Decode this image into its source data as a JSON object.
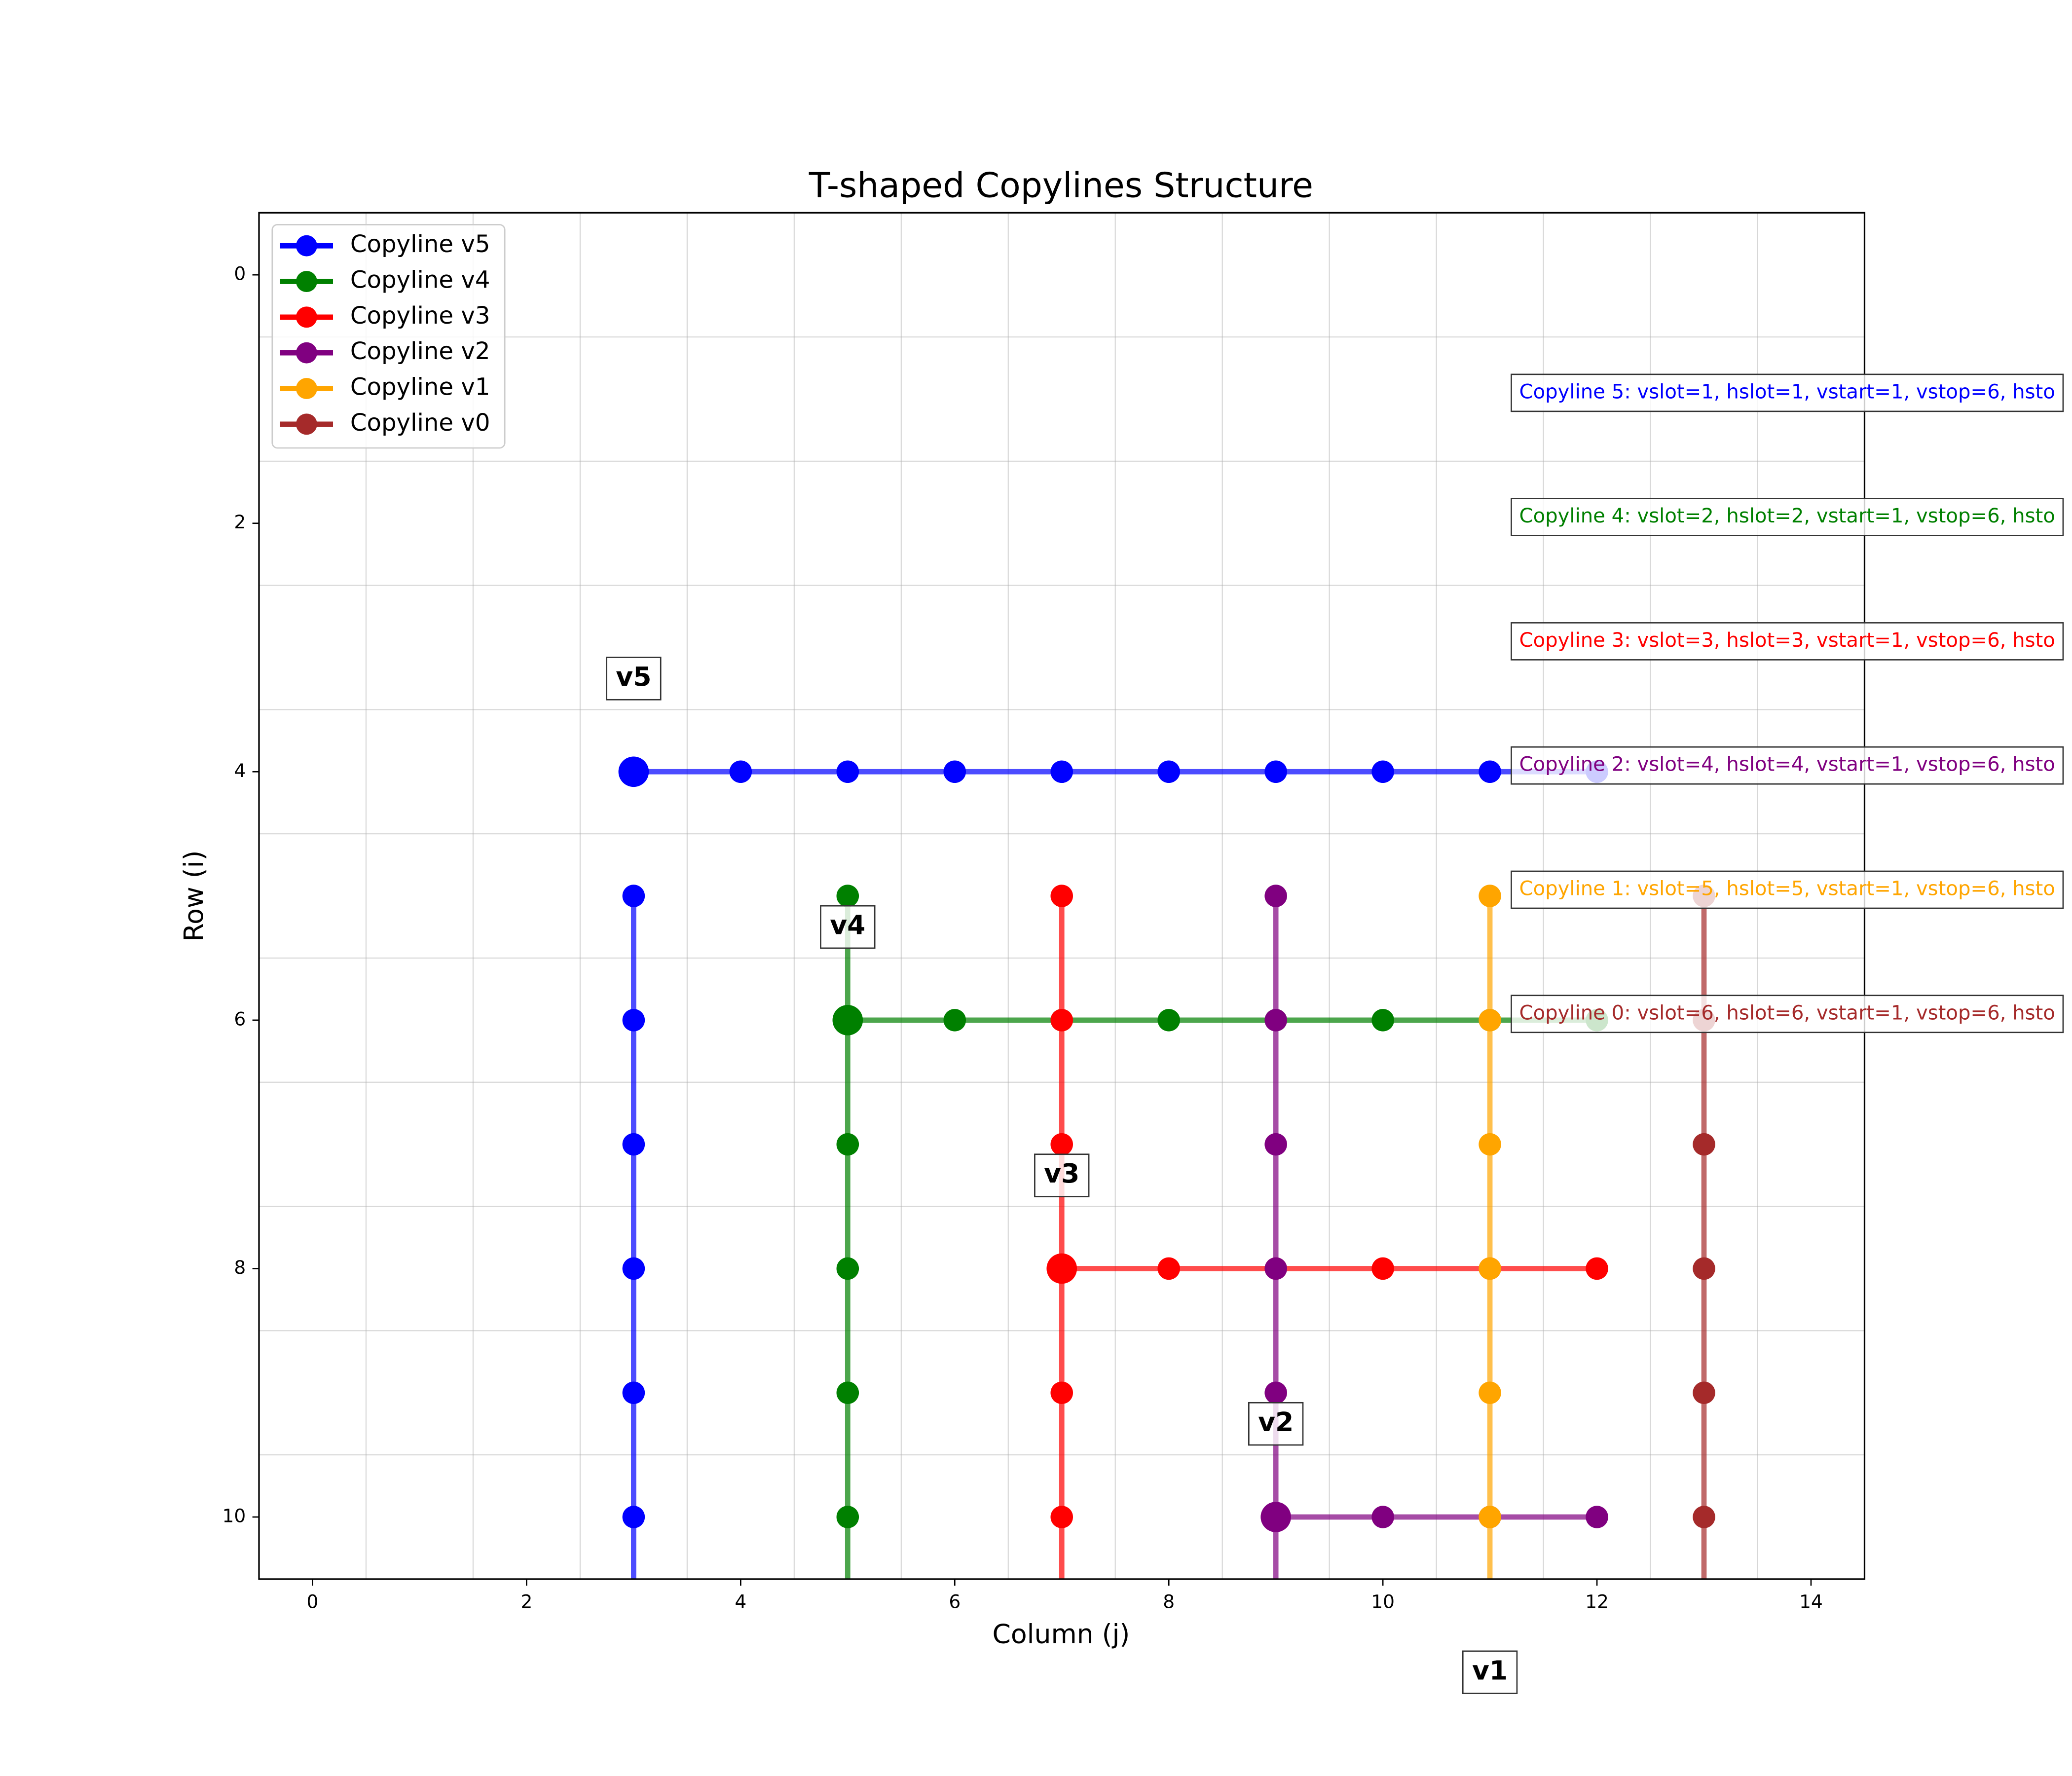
{
  "chart_data": {
    "type": "line",
    "title": "T-shaped Copylines Structure",
    "xlabel": "Column (j)",
    "ylabel": "Row (i)",
    "xlim": [
      -0.5,
      14.5
    ],
    "ylim": [
      10.5,
      -0.5
    ],
    "xticks": [
      0,
      2,
      4,
      6,
      8,
      10,
      12,
      14
    ],
    "yticks": [
      0,
      2,
      4,
      6,
      8,
      10
    ],
    "grid": true,
    "xgrid": [
      0.5,
      1.5,
      2.5,
      3.5,
      4.5,
      5.5,
      6.5,
      7.5,
      8.5,
      9.5,
      10.5,
      11.5,
      12.5,
      13.5
    ],
    "ygrid": [
      0.5,
      1.5,
      2.5,
      3.5,
      4.5,
      5.5,
      6.5,
      7.5,
      8.5,
      9.5
    ],
    "legend": "upper left",
    "series": [
      {
        "name": "Copyline v5",
        "color": "#0000ff",
        "x": [
          3,
          4,
          5,
          6,
          7,
          8,
          9,
          10,
          11,
          12,
          null,
          3,
          3,
          3,
          3,
          3,
          3,
          3
        ],
        "values": [
          4,
          4,
          4,
          4,
          4,
          4,
          4,
          4,
          4,
          4,
          null,
          5,
          6,
          7,
          8,
          9,
          10,
          11
        ],
        "corner": {
          "x": 3,
          "y": 4
        },
        "label": {
          "text": "v5",
          "x": 3,
          "y": 3.25
        }
      },
      {
        "name": "Copyline v4",
        "color": "#008000",
        "x": [
          5,
          6,
          7,
          8,
          9,
          10,
          11,
          12,
          null,
          5,
          5,
          5,
          5,
          5,
          5,
          5
        ],
        "values": [
          6,
          6,
          6,
          6,
          6,
          6,
          6,
          6,
          null,
          5,
          6,
          7,
          8,
          9,
          10,
          11
        ],
        "corner": {
          "x": 5,
          "y": 6
        },
        "label": {
          "text": "v4",
          "x": 5,
          "y": 5.25
        }
      },
      {
        "name": "Copyline v3",
        "color": "#ff0000",
        "x": [
          7,
          8,
          9,
          10,
          11,
          12,
          null,
          7,
          7,
          7,
          7,
          7,
          7,
          7
        ],
        "values": [
          8,
          8,
          8,
          8,
          8,
          8,
          null,
          5,
          6,
          7,
          8,
          9,
          10,
          11
        ],
        "corner": {
          "x": 7,
          "y": 8
        },
        "label": {
          "text": "v3",
          "x": 7,
          "y": 7.25
        }
      },
      {
        "name": "Copyline v2",
        "color": "#800080",
        "x": [
          9,
          10,
          11,
          12,
          null,
          9,
          9,
          9,
          9,
          9,
          9,
          9
        ],
        "values": [
          10,
          10,
          10,
          10,
          null,
          5,
          6,
          7,
          8,
          9,
          10,
          11
        ],
        "corner": {
          "x": 9,
          "y": 10
        },
        "label": {
          "text": "v2",
          "x": 9,
          "y": 9.25
        }
      },
      {
        "name": "Copyline v1",
        "color": "#ffa500",
        "x": [
          11,
          11,
          11,
          11,
          11,
          11,
          11
        ],
        "values": [
          5,
          6,
          7,
          8,
          9,
          10,
          11
        ],
        "label": {
          "text": "v1",
          "x": 11,
          "y": 11.25
        }
      },
      {
        "name": "Copyline v0",
        "color": "#a52a2a",
        "x": [
          13,
          13,
          13,
          13,
          13,
          13,
          13
        ],
        "values": [
          5,
          6,
          7,
          8,
          9,
          10,
          11
        ]
      }
    ],
    "annotations": [
      {
        "text": "Copyline 5: vslot=1, hslot=1, vstart=1, vstop=6, hsto",
        "x": 11.2,
        "y": 0.95,
        "color": "#0000ff"
      },
      {
        "text": "Copyline 4: vslot=2, hslot=2, vstart=1, vstop=6, hsto",
        "x": 11.2,
        "y": 1.95,
        "color": "#008000"
      },
      {
        "text": "Copyline 3: vslot=3, hslot=3, vstart=1, vstop=6, hsto",
        "x": 11.2,
        "y": 2.95,
        "color": "#ff0000"
      },
      {
        "text": "Copyline 2: vslot=4, hslot=4, vstart=1, vstop=6, hsto",
        "x": 11.2,
        "y": 3.95,
        "color": "#800080"
      },
      {
        "text": "Copyline 1: vslot=5, hslot=5, vstart=1, vstop=6, hsto",
        "x": 11.2,
        "y": 4.95,
        "color": "#ffa500"
      },
      {
        "text": "Copyline 0: vslot=6, hslot=6, vstart=1, vstop=6, hsto",
        "x": 11.2,
        "y": 5.95,
        "color": "#a52a2a"
      }
    ]
  }
}
